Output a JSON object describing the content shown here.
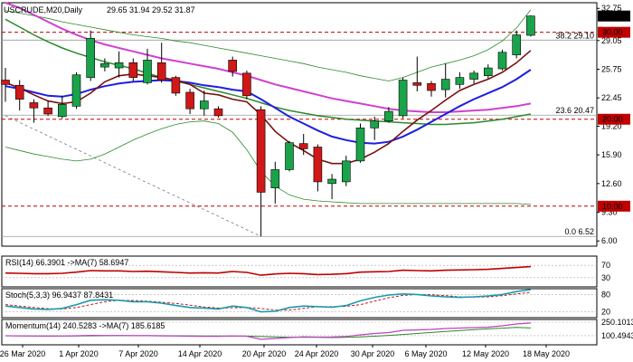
{
  "header": {
    "symbol": "USCRUDE,M20,Daily",
    "ohlc": "29.65 31.94 29.52 31.87"
  },
  "colors": {
    "bull": "#1aa34a",
    "bear": "#d01818",
    "candle_outline": "#000000",
    "ma_fast": "#7a1010",
    "ma_mid": "#1e1ee0",
    "ma_slow": "#d040d0",
    "ma_long": "#2a8a2a",
    "bollinger": "#2a8a2a",
    "sr_line": "#c00000",
    "rsi_line": "#c00000",
    "stoch_main": "#1a9ab0",
    "stoch_signal": "#c00000",
    "mom_line": "#c040c0",
    "mom_signal": "#2a8a2a"
  },
  "chart_data": {
    "type": "candlestick",
    "x_labels": [
      "26 Mar 2020",
      "1 Apr 2020",
      "7 Apr 2020",
      "14 Apr 2020",
      "20 Apr 2020",
      "24 Apr 2020",
      "30 Apr 2020",
      "6 May 2020",
      "12 May 2020",
      "18 May 2020"
    ],
    "y_ticks": [
      "32.75",
      "29.05",
      "25.75",
      "22.45",
      "19.20",
      "15.90",
      "12.60",
      "9.30",
      "6.00"
    ],
    "y_range": [
      5.4,
      33.4
    ],
    "price_tag": "31.87",
    "levels": [
      {
        "label": "30.00",
        "value": 30.0
      },
      {
        "label": "20.00",
        "value": 20.0
      },
      {
        "label": "10.00",
        "value": 10.0
      }
    ],
    "fib_labels": [
      {
        "text": "38.2 29.10",
        "value": 29.1
      },
      {
        "text": "23.6 20.47",
        "value": 20.47
      },
      {
        "text": "0.0 6.52",
        "value": 6.52
      }
    ],
    "candles": [
      {
        "o": 24.5,
        "h": 25.9,
        "l": 22.0,
        "c": 24.0
      },
      {
        "o": 23.9,
        "h": 24.5,
        "l": 21.0,
        "c": 22.3
      },
      {
        "o": 21.9,
        "h": 22.3,
        "l": 19.6,
        "c": 21.3
      },
      {
        "o": 21.3,
        "h": 22.1,
        "l": 20.4,
        "c": 20.6
      },
      {
        "o": 20.3,
        "h": 22.7,
        "l": 20.1,
        "c": 21.7
      },
      {
        "o": 21.5,
        "h": 25.4,
        "l": 21.2,
        "c": 25.1
      },
      {
        "o": 24.8,
        "h": 30.2,
        "l": 24.4,
        "c": 29.3
      },
      {
        "o": 26.0,
        "h": 27.0,
        "l": 25.5,
        "c": 26.4
      },
      {
        "o": 25.9,
        "h": 27.8,
        "l": 24.8,
        "c": 26.5
      },
      {
        "o": 26.5,
        "h": 27.0,
        "l": 24.4,
        "c": 24.8
      },
      {
        "o": 24.2,
        "h": 28.1,
        "l": 24.0,
        "c": 26.8
      },
      {
        "o": 26.5,
        "h": 28.8,
        "l": 24.2,
        "c": 24.5
      },
      {
        "o": 24.8,
        "h": 25.0,
        "l": 22.7,
        "c": 23.0
      },
      {
        "o": 23.1,
        "h": 23.5,
        "l": 20.6,
        "c": 21.2
      },
      {
        "o": 21.2,
        "h": 23.3,
        "l": 20.4,
        "c": 22.1
      },
      {
        "o": 21.2,
        "h": 21.5,
        "l": 20.2,
        "c": 20.4
      },
      {
        "o": 26.8,
        "h": 27.2,
        "l": 24.9,
        "c": 25.5
      },
      {
        "o": 25.3,
        "h": 25.6,
        "l": 22.3,
        "c": 22.7
      },
      {
        "o": 21.1,
        "h": 21.5,
        "l": 6.52,
        "c": 11.6
      },
      {
        "o": 12.1,
        "h": 15.1,
        "l": 10.3,
        "c": 14.2
      },
      {
        "o": 14.2,
        "h": 17.5,
        "l": 14.0,
        "c": 17.3
      },
      {
        "o": 17.2,
        "h": 18.3,
        "l": 15.9,
        "c": 16.6
      },
      {
        "o": 16.8,
        "h": 17.1,
        "l": 11.7,
        "c": 12.8
      },
      {
        "o": 12.6,
        "h": 13.7,
        "l": 10.8,
        "c": 13.1
      },
      {
        "o": 12.8,
        "h": 15.8,
        "l": 12.3,
        "c": 15.2
      },
      {
        "o": 15.2,
        "h": 19.5,
        "l": 15.0,
        "c": 19.0
      },
      {
        "o": 19.0,
        "h": 20.3,
        "l": 17.6,
        "c": 19.8
      },
      {
        "o": 19.8,
        "h": 21.4,
        "l": 19.6,
        "c": 20.9
      },
      {
        "o": 20.4,
        "h": 24.8,
        "l": 20.1,
        "c": 24.5
      },
      {
        "o": 24.2,
        "h": 27.2,
        "l": 23.2,
        "c": 23.9
      },
      {
        "o": 24.1,
        "h": 24.4,
        "l": 22.6,
        "c": 23.3
      },
      {
        "o": 23.4,
        "h": 26.4,
        "l": 22.5,
        "c": 24.6
      },
      {
        "o": 24.0,
        "h": 25.4,
        "l": 23.5,
        "c": 24.8
      },
      {
        "o": 24.6,
        "h": 25.6,
        "l": 24.1,
        "c": 25.3
      },
      {
        "o": 25.0,
        "h": 26.3,
        "l": 24.7,
        "c": 25.9
      },
      {
        "o": 25.8,
        "h": 28.0,
        "l": 25.6,
        "c": 27.7
      },
      {
        "o": 27.4,
        "h": 30.2,
        "l": 27.0,
        "c": 29.7
      },
      {
        "o": 29.65,
        "h": 31.94,
        "l": 29.52,
        "c": 31.87
      }
    ],
    "ma_fast": [
      24.2,
      23.6,
      22.8,
      22.1,
      21.8,
      22.0,
      23.0,
      24.3,
      25.0,
      25.2,
      25.0,
      24.8,
      24.5,
      24.0,
      23.0,
      22.8,
      22.3,
      22.0,
      20.5,
      18.6,
      17.3,
      16.4,
      15.4,
      14.9,
      14.9,
      15.4,
      16.2,
      17.2,
      18.6,
      19.9,
      21.0,
      22.2,
      23.3,
      24.0,
      24.6,
      25.4,
      26.5,
      27.9
    ],
    "ma_mid": [
      23.8,
      23.5,
      23.1,
      22.7,
      22.6,
      22.9,
      23.4,
      23.8,
      24.1,
      24.3,
      24.4,
      24.5,
      24.4,
      24.2,
      23.9,
      23.7,
      23.4,
      23.2,
      22.3,
      21.3,
      20.3,
      19.5,
      18.7,
      18.0,
      17.6,
      17.3,
      17.2,
      17.4,
      18.0,
      18.8,
      19.7,
      20.6,
      21.5,
      22.3,
      23.0,
      23.7,
      24.6,
      25.7
    ],
    "ma_slow": [
      33.4,
      32.8,
      32.0,
      31.2,
      30.4,
      29.7,
      29.1,
      28.6,
      28.2,
      27.8,
      27.4,
      27.0,
      26.7,
      26.4,
      26.1,
      25.8,
      25.4,
      25.0,
      24.5,
      24.0,
      23.6,
      23.2,
      22.8,
      22.4,
      22.1,
      21.8,
      21.5,
      21.2,
      21.0,
      20.9,
      20.8,
      20.8,
      20.9,
      21.0,
      21.1,
      21.3,
      21.5,
      21.8
    ],
    "ma_long": [
      31.5,
      30.6,
      29.7,
      28.9,
      28.2,
      27.6,
      27.1,
      26.6,
      26.2,
      25.8,
      25.3,
      24.8,
      24.4,
      24.0,
      23.6,
      23.2,
      22.8,
      22.4,
      21.9,
      21.4,
      21.0,
      20.7,
      20.4,
      20.2,
      20.0,
      19.9,
      19.8,
      19.7,
      19.6,
      19.5,
      19.4,
      19.4,
      19.5,
      19.6,
      19.8,
      20.0,
      20.3,
      20.6
    ],
    "bb_upper": [
      32.5,
      32.2,
      31.9,
      31.6,
      31.2,
      30.9,
      30.6,
      30.3,
      30.0,
      29.7,
      29.5,
      29.3,
      29.0,
      28.8,
      28.5,
      28.2,
      27.9,
      27.6,
      27.3,
      27.0,
      26.7,
      26.4,
      26.0,
      25.7,
      25.4,
      25.0,
      24.7,
      24.4,
      24.8,
      25.4,
      26.0,
      26.4,
      26.8,
      27.3,
      28.0,
      29.0,
      30.5,
      32.6
    ],
    "bb_lower": [
      16.8,
      16.4,
      16.0,
      15.7,
      15.4,
      15.2,
      15.4,
      16.0,
      16.8,
      17.6,
      18.3,
      18.9,
      19.4,
      19.7,
      19.8,
      19.5,
      18.5,
      16.5,
      14.0,
      12.3,
      11.3,
      10.8,
      10.6,
      10.5,
      10.4,
      10.3,
      10.3,
      10.3,
      10.3,
      10.3,
      10.3,
      10.3,
      10.3,
      10.3,
      10.3,
      10.3,
      10.3,
      10.2
    ],
    "dashed_trendline": {
      "from": [
        0,
        20.4
      ],
      "to": [
        18,
        6.52
      ]
    },
    "indicators": [
      {
        "name": "RSI",
        "label": "RSI(14) 66.3901 ->MA(7) 58.6947",
        "ticks": [
          "70",
          "30"
        ],
        "range": [
          0,
          100
        ],
        "values": [
          45,
          44,
          43,
          43,
          44,
          48,
          53,
          52,
          52,
          50,
          51,
          49,
          47,
          45,
          46,
          45,
          50,
          47,
          38,
          42,
          44,
          43,
          40,
          41,
          43,
          48,
          49,
          50,
          54,
          53,
          52,
          54,
          55,
          56,
          57,
          60,
          63,
          66
        ]
      },
      {
        "name": "Stoch",
        "label": "Stoch(5,3,3) 96.9437 87.8431",
        "ticks": [
          "80",
          "20"
        ],
        "range": [
          0,
          100
        ],
        "values": [
          40,
          35,
          30,
          28,
          32,
          45,
          60,
          62,
          60,
          55,
          55,
          50,
          42,
          35,
          33,
          30,
          40,
          35,
          20,
          22,
          35,
          40,
          38,
          36,
          42,
          58,
          70,
          78,
          82,
          80,
          75,
          72,
          70,
          72,
          75,
          80,
          90,
          96.9
        ],
        "signal": [
          45,
          40,
          35,
          31,
          30,
          35,
          45,
          55,
          60,
          59,
          57,
          53,
          49,
          43,
          37,
          33,
          34,
          35,
          32,
          26,
          26,
          32,
          38,
          38,
          39,
          45,
          57,
          69,
          77,
          80,
          79,
          76,
          72,
          71,
          72,
          76,
          82,
          87.8
        ]
      },
      {
        "name": "Momentum",
        "label": "Momentum(14) 240.5283 ->MA(7) 185.6185",
        "ticks": [
          "250.1013",
          "100.4943"
        ],
        "range": [
          0,
          280
        ],
        "values": [
          100,
          98,
          97,
          96,
          97,
          100,
          104,
          103,
          103,
          101,
          101,
          99,
          97,
          95,
          94,
          93,
          98,
          95,
          60,
          70,
          80,
          88,
          85,
          86,
          92,
          110,
          125,
          135,
          160,
          165,
          170,
          180,
          185,
          190,
          195,
          210,
          230,
          240.5
        ],
        "signal": [
          100,
          99,
          98,
          97,
          97,
          98,
          99,
          100,
          101,
          101,
          101,
          101,
          100,
          99,
          98,
          97,
          96,
          96,
          91,
          87,
          84,
          83,
          82,
          80,
          83,
          88,
          95,
          104,
          114,
          125,
          136,
          147,
          158,
          168,
          176,
          184,
          192,
          185.6
        ]
      }
    ]
  }
}
